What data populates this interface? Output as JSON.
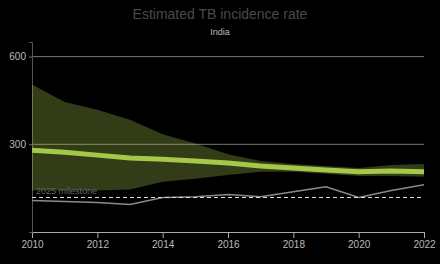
{
  "chart_data": {
    "type": "line",
    "title": "Estimated TB incidence rate",
    "subtitle": "India",
    "x": [
      2010,
      2011,
      2012,
      2013,
      2014,
      2015,
      2016,
      2017,
      2018,
      2019,
      2020,
      2021,
      2022
    ],
    "series": [
      {
        "type": "line",
        "color": "#a5c84a",
        "values": [
          280,
          273,
          263,
          253,
          249,
          243,
          236,
          226,
          219,
          212,
          206,
          209,
          206
        ],
        "ci_low": [
          142,
          142,
          142,
          145,
          172,
          182,
          195,
          206,
          206,
          199,
          192,
          192,
          189
        ],
        "ci_high": [
          505,
          445,
          418,
          384,
          334,
          303,
          266,
          243,
          233,
          226,
          219,
          229,
          233
        ]
      },
      {
        "type": "line",
        "color": "#8a8a8a",
        "values": [
          108,
          104,
          101,
          94,
          118,
          121,
          128,
          121,
          138,
          155,
          118,
          142,
          162
        ]
      }
    ],
    "annotations": [
      {
        "text": "2025 milestone",
        "y": 118,
        "line_style": "dashed"
      }
    ],
    "xlim": [
      2010,
      2022
    ],
    "xticks": [
      2010,
      2012,
      2014,
      2016,
      2018,
      2020,
      2022
    ],
    "ylim": [
      0,
      650
    ],
    "yticks": [
      300,
      600
    ],
    "grid": true
  }
}
